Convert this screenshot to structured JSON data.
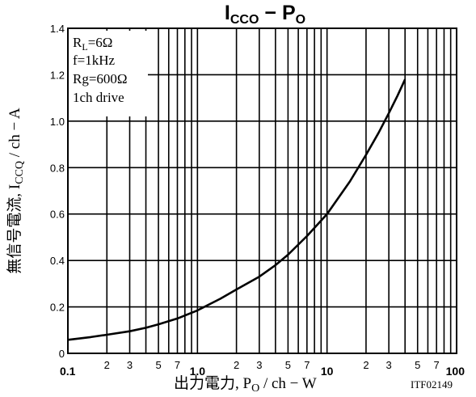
{
  "chart_data": {
    "type": "line",
    "title": {
      "main": "I",
      "main_sub": "CCO",
      "sep": " − ",
      "main2": "P",
      "main2_sub": "O"
    },
    "xscale": "log",
    "xlim": [
      0.1,
      100
    ],
    "ylim": [
      0,
      1.4
    ],
    "grid": true,
    "x_major_ticks": [
      {
        "value": 0.1,
        "label": "0.1"
      },
      {
        "value": 1,
        "label": "1.0"
      },
      {
        "value": 10,
        "label": "10"
      },
      {
        "value": 100,
        "label": "100"
      }
    ],
    "x_minor_ticks": [
      {
        "value": 0.2,
        "label": "2"
      },
      {
        "value": 0.3,
        "label": "3"
      },
      {
        "value": 0.5,
        "label": "5"
      },
      {
        "value": 0.7,
        "label": "7"
      },
      {
        "value": 2,
        "label": "2"
      },
      {
        "value": 3,
        "label": "3"
      },
      {
        "value": 5,
        "label": "5"
      },
      {
        "value": 7,
        "label": "7"
      },
      {
        "value": 20,
        "label": "2"
      },
      {
        "value": 30,
        "label": "3"
      },
      {
        "value": 50,
        "label": "5"
      },
      {
        "value": 70,
        "label": "7"
      }
    ],
    "x_unlabeled_gridlines": [
      0.4,
      0.6,
      0.8,
      0.9,
      4,
      6,
      8,
      9,
      40,
      60,
      80,
      90
    ],
    "y_ticks": [
      {
        "value": 0,
        "label": "0"
      },
      {
        "value": 0.2,
        "label": "0.2"
      },
      {
        "value": 0.4,
        "label": "0.4"
      },
      {
        "value": 0.6,
        "label": "0.6"
      },
      {
        "value": 0.8,
        "label": "0.8"
      },
      {
        "value": 1.0,
        "label": "1.0"
      },
      {
        "value": 1.2,
        "label": "1.2"
      },
      {
        "value": 1.4,
        "label": "1.4"
      }
    ],
    "xlabel": {
      "prefix": "出力電力, P",
      "sub": "O",
      "suffix": " / ch − W"
    },
    "ylabel": {
      "prefix": "無信号電流, I",
      "sub": "CCQ",
      "suffix": " / ch − A"
    },
    "annotations": [
      {
        "main": "R",
        "sub": "L",
        "rest": "=6Ω"
      },
      {
        "main": "f=1kHz",
        "sub": "",
        "rest": ""
      },
      {
        "main": "Rg=600Ω",
        "sub": "",
        "rest": ""
      },
      {
        "main": "1ch drive",
        "sub": "",
        "rest": ""
      }
    ],
    "code": "ITF02149",
    "series": [
      {
        "x": [
          0.1,
          0.15,
          0.2,
          0.3,
          0.4,
          0.5,
          0.7,
          1.0,
          1.5,
          2.0,
          3.0,
          4.0,
          5.0,
          7.0,
          10,
          15,
          20,
          25,
          30,
          35,
          40
        ],
        "y": [
          0.058,
          0.07,
          0.08,
          0.095,
          0.11,
          0.125,
          0.15,
          0.185,
          0.235,
          0.275,
          0.33,
          0.38,
          0.425,
          0.505,
          0.6,
          0.74,
          0.855,
          0.95,
          1.035,
          1.11,
          1.18
        ]
      }
    ]
  }
}
